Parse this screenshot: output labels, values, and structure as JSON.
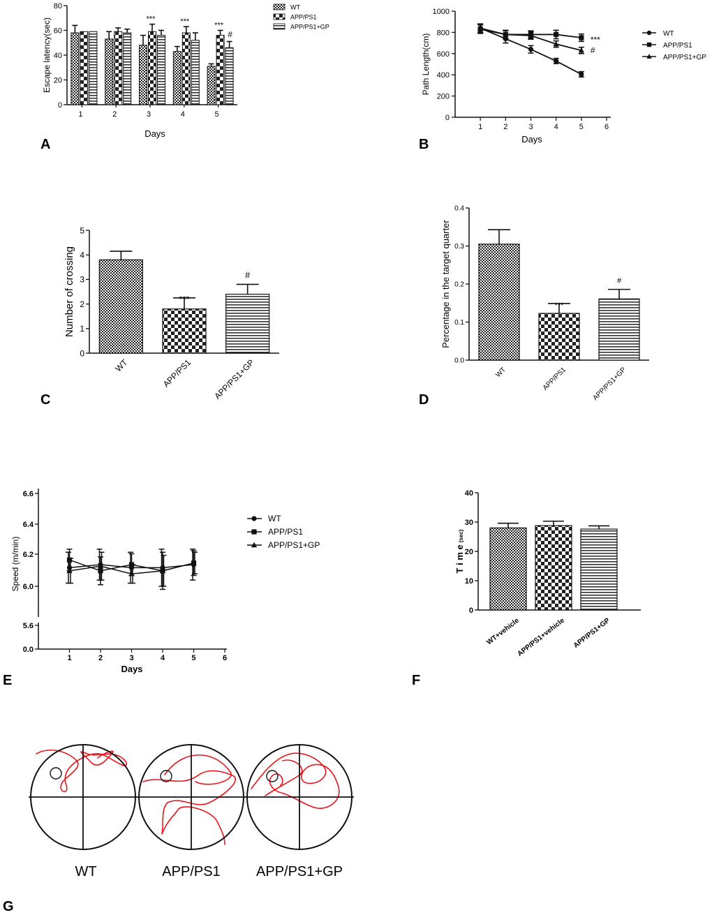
{
  "panel_labels": [
    "A",
    "B",
    "C",
    "D",
    "E",
    "F",
    "G"
  ],
  "chart_data": [
    {
      "id": "A",
      "type": "bar",
      "xlabel": "Days",
      "ylabel": "Escape latency(sec)",
      "ylim": [
        0,
        80
      ],
      "yticks": [
        0,
        20,
        40,
        60,
        80
      ],
      "categories": [
        "1",
        "2",
        "3",
        "4",
        "5"
      ],
      "legend": "right",
      "series": [
        {
          "name": "WT",
          "values": [
            58,
            53,
            48,
            43,
            31
          ],
          "errors": [
            6,
            6,
            8,
            4,
            2
          ]
        },
        {
          "name": "APP/PS1",
          "values": [
            59,
            59,
            59,
            58,
            56
          ],
          "errors": [
            0,
            3,
            6,
            5,
            4
          ]
        },
        {
          "name": "APP/PS1+GP",
          "values": [
            59,
            58,
            56,
            52,
            46
          ],
          "errors": [
            0,
            3,
            4,
            6,
            5
          ]
        }
      ],
      "annotations": [
        {
          "category": "3",
          "text": "***"
        },
        {
          "category": "4",
          "text": "***"
        },
        {
          "category": "5",
          "text": "***"
        },
        {
          "category": "5",
          "text": "#"
        }
      ]
    },
    {
      "id": "B",
      "type": "line",
      "xlabel": "Days",
      "ylabel": "Path Length(cm)",
      "xlim": [
        0,
        6
      ],
      "xticks": [
        1,
        2,
        3,
        4,
        5,
        6
      ],
      "ylim": [
        0,
        1000
      ],
      "yticks": [
        0,
        200,
        400,
        600,
        800,
        1000
      ],
      "x": [
        1,
        2,
        3,
        4,
        5
      ],
      "legend": "right",
      "series": [
        {
          "name": "WT",
          "values": [
            840,
            740,
            640,
            530,
            405
          ],
          "errors": [
            40,
            40,
            35,
            25,
            25
          ]
        },
        {
          "name": "APP/PS1",
          "values": [
            830,
            780,
            780,
            780,
            750
          ],
          "errors": [
            40,
            40,
            35,
            40,
            35
          ]
        },
        {
          "name": "APP/PS1+GP",
          "values": [
            840,
            780,
            770,
            690,
            630
          ],
          "errors": [
            40,
            35,
            35,
            30,
            30
          ]
        }
      ],
      "annotations": [
        {
          "series": "APP/PS1",
          "text": "***"
        },
        {
          "series": "APP/PS1+GP",
          "text": "#"
        }
      ]
    },
    {
      "id": "C",
      "type": "bar",
      "ylabel": "Number of crossing",
      "ylim": [
        0,
        5
      ],
      "yticks": [
        0,
        1,
        2,
        3,
        4,
        5
      ],
      "categories": [
        "WT",
        "APP/PS1",
        "APP/PS1+GP"
      ],
      "values": [
        3.8,
        1.8,
        2.4
      ],
      "errors": [
        0.35,
        0.45,
        0.4
      ],
      "annotations": [
        "",
        "***",
        "#"
      ]
    },
    {
      "id": "D",
      "type": "bar",
      "ylabel": "Percentage in the target quarter",
      "ylim": [
        0,
        0.4
      ],
      "yticks": [
        "0.0",
        "0.1",
        "0.2",
        "0.3",
        "0.4"
      ],
      "categories": [
        "WT",
        "APP/PS1",
        "APP/PS1+GP"
      ],
      "values": [
        0.305,
        0.123,
        0.161
      ],
      "errors": [
        0.038,
        0.026,
        0.025
      ],
      "annotations": [
        "",
        "***",
        "#"
      ]
    },
    {
      "id": "E",
      "type": "line",
      "xlabel": "Days",
      "ylabel": "Speed (m/min)",
      "xlim": [
        0,
        6
      ],
      "xticks": [
        1,
        2,
        3,
        4,
        5,
        6
      ],
      "yticks": [
        "0.0",
        "5.6",
        "6.0",
        "6.2",
        "6.4",
        "6.6"
      ],
      "broken_axis": true,
      "x": [
        1,
        2,
        3,
        4,
        5
      ],
      "legend": "right",
      "series": [
        {
          "name": "WT",
          "values": [
            6.12,
            6.14,
            6.12,
            6.12,
            6.14
          ],
          "errors": [
            0.1,
            0.1,
            0.1,
            0.12,
            0.1
          ]
        },
        {
          "name": "APP/PS1",
          "values": [
            6.17,
            6.1,
            6.14,
            6.1,
            6.15
          ],
          "errors": [
            0.07,
            0.09,
            0.07,
            0.12,
            0.08
          ]
        },
        {
          "name": "APP/PS1+GP",
          "values": [
            6.1,
            6.13,
            6.08,
            6.1,
            6.15
          ],
          "errors": [
            0.08,
            0.09,
            0.06,
            0.1,
            0.07
          ]
        }
      ]
    },
    {
      "id": "F",
      "type": "bar",
      "ylabel": "T i m e",
      "ylabel_unit": "(sec)",
      "ylim": [
        0,
        40
      ],
      "yticks": [
        0,
        10,
        20,
        30,
        40
      ],
      "categories": [
        "WT+vehicle",
        "APP/PS1+vehicle",
        "APP/PS1+GP"
      ],
      "values": [
        28,
        28.8,
        27.6
      ],
      "errors": [
        1.6,
        1.5,
        1.1
      ]
    }
  ],
  "tracks": {
    "labels": [
      "WT",
      "APP/PS1",
      "APP/PS1+GP"
    ],
    "track_color": "#e8141c"
  },
  "colors": {
    "axis": "#111111",
    "track": "#e8141c"
  }
}
